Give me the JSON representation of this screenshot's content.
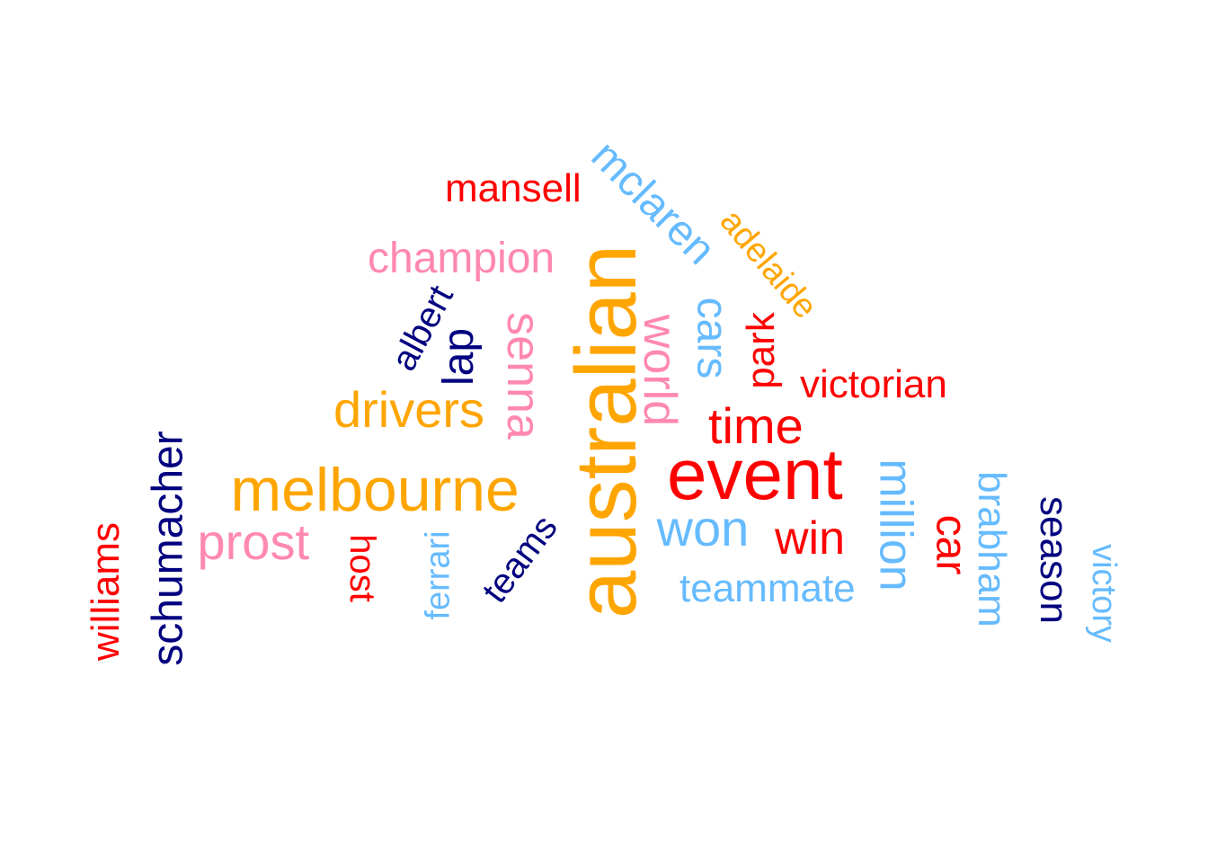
{
  "palette": {
    "orange": "#FFA500",
    "red": "#FF0000",
    "pink": "#FF88B0",
    "navy": "#00007F",
    "light_blue": "#66BBFF"
  },
  "words": [
    {
      "text": "australian",
      "color": "#FFA500",
      "rotated": true
    },
    {
      "text": "event",
      "color": "#FF0000",
      "rotated": false
    },
    {
      "text": "melbourne",
      "color": "#FFA500",
      "rotated": false
    },
    {
      "text": "senna",
      "color": "#FF88B0",
      "rotated": true
    },
    {
      "text": "world",
      "color": "#FF88B0",
      "rotated": true
    },
    {
      "text": "million",
      "color": "#66BBFF",
      "rotated": true
    },
    {
      "text": "drivers",
      "color": "#FFA500",
      "rotated": false
    },
    {
      "text": "won",
      "color": "#66BBFF",
      "rotated": false
    },
    {
      "text": "time",
      "color": "#FF0000",
      "rotated": false
    },
    {
      "text": "prost",
      "color": "#FF88B0",
      "rotated": false
    },
    {
      "text": "mclaren",
      "color": "#66BBFF",
      "rotated": true
    },
    {
      "text": "cars",
      "color": "#66BBFF",
      "rotated": true
    },
    {
      "text": "lap",
      "color": "#00007F",
      "rotated": true
    },
    {
      "text": "win",
      "color": "#FF0000",
      "rotated": false
    },
    {
      "text": "car",
      "color": "#FF0000",
      "rotated": true
    },
    {
      "text": "schumacher",
      "color": "#00007F",
      "rotated": true
    },
    {
      "text": "champion",
      "color": "#FF88B0",
      "rotated": false
    },
    {
      "text": "williams",
      "color": "#FF0000",
      "rotated": true
    },
    {
      "text": "brabham",
      "color": "#66BBFF",
      "rotated": true
    },
    {
      "text": "season",
      "color": "#00007F",
      "rotated": true
    },
    {
      "text": "park",
      "color": "#FF0000",
      "rotated": true
    },
    {
      "text": "teammate",
      "color": "#66BBFF",
      "rotated": false
    },
    {
      "text": "victorian",
      "color": "#FF0000",
      "rotated": false
    },
    {
      "text": "host",
      "color": "#FF0000",
      "rotated": true
    },
    {
      "text": "teams",
      "color": "#00007F",
      "rotated": true
    },
    {
      "text": "albert",
      "color": "#00007F",
      "rotated": true
    },
    {
      "text": "mansell",
      "color": "#FF0000",
      "rotated": false
    },
    {
      "text": "adelaide",
      "color": "#FFA500",
      "rotated": true
    },
    {
      "text": "ferrari",
      "color": "#66BBFF",
      "rotated": true
    },
    {
      "text": "victory",
      "color": "#66BBFF",
      "rotated": true
    }
  ]
}
